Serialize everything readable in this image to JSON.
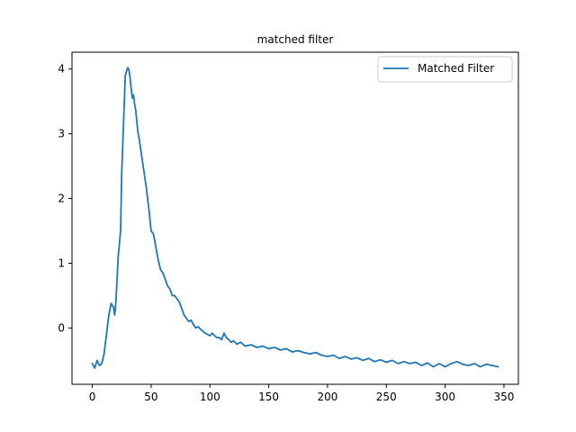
{
  "chart_data": {
    "type": "line",
    "title": "matched filter",
    "xlabel": "",
    "ylabel": "",
    "xlim": [
      -17.3,
      362.3
    ],
    "ylim": [
      -0.87,
      4.26
    ],
    "x_ticks": [
      0,
      50,
      100,
      150,
      200,
      250,
      300,
      350
    ],
    "y_ticks": [
      0,
      1,
      2,
      3,
      4
    ],
    "grid": false,
    "legend_position": "top-right",
    "series": [
      {
        "name": "Matched Filter",
        "color": "#1f77b4",
        "x": [
          0,
          2,
          4,
          6,
          8,
          10,
          12,
          14,
          16,
          18,
          19,
          20,
          22,
          24,
          25,
          26,
          28,
          30,
          31,
          32,
          33,
          34,
          35,
          36,
          37,
          38,
          39,
          40,
          42,
          44,
          46,
          48,
          50,
          52,
          54,
          56,
          58,
          60,
          62,
          64,
          66,
          68,
          70,
          72,
          74,
          76,
          78,
          80,
          82,
          84,
          86,
          88,
          90,
          92,
          94,
          96,
          98,
          100,
          102,
          104,
          106,
          108,
          110,
          112,
          114,
          116,
          118,
          120,
          123,
          126,
          130,
          135,
          140,
          145,
          150,
          155,
          160,
          165,
          170,
          175,
          180,
          185,
          190,
          195,
          200,
          205,
          210,
          215,
          220,
          225,
          230,
          235,
          240,
          245,
          250,
          255,
          260,
          265,
          270,
          275,
          280,
          285,
          290,
          295,
          300,
          305,
          310,
          315,
          320,
          325,
          330,
          335,
          340,
          345
        ],
        "y": [
          -0.55,
          -0.62,
          -0.5,
          -0.58,
          -0.55,
          -0.4,
          -0.1,
          0.2,
          0.38,
          0.32,
          0.2,
          0.4,
          1.1,
          1.5,
          2.4,
          2.9,
          3.9,
          4.02,
          4.0,
          3.88,
          3.7,
          3.55,
          3.6,
          3.45,
          3.35,
          3.15,
          3.0,
          2.9,
          2.65,
          2.4,
          2.15,
          1.85,
          1.5,
          1.45,
          1.25,
          1.05,
          0.9,
          0.85,
          0.75,
          0.65,
          0.6,
          0.5,
          0.5,
          0.45,
          0.4,
          0.3,
          0.2,
          0.15,
          0.1,
          0.12,
          0.05,
          0.0,
          0.02,
          -0.02,
          -0.05,
          -0.08,
          -0.1,
          -0.12,
          -0.08,
          -0.12,
          -0.15,
          -0.15,
          -0.18,
          -0.08,
          -0.15,
          -0.18,
          -0.22,
          -0.2,
          -0.25,
          -0.22,
          -0.28,
          -0.26,
          -0.3,
          -0.28,
          -0.32,
          -0.3,
          -0.34,
          -0.32,
          -0.37,
          -0.35,
          -0.38,
          -0.4,
          -0.38,
          -0.42,
          -0.44,
          -0.42,
          -0.47,
          -0.44,
          -0.48,
          -0.46,
          -0.5,
          -0.47,
          -0.52,
          -0.49,
          -0.53,
          -0.5,
          -0.55,
          -0.52,
          -0.55,
          -0.53,
          -0.58,
          -0.54,
          -0.6,
          -0.55,
          -0.6,
          -0.55,
          -0.52,
          -0.56,
          -0.58,
          -0.55,
          -0.6,
          -0.56,
          -0.58,
          -0.6
        ]
      }
    ]
  }
}
